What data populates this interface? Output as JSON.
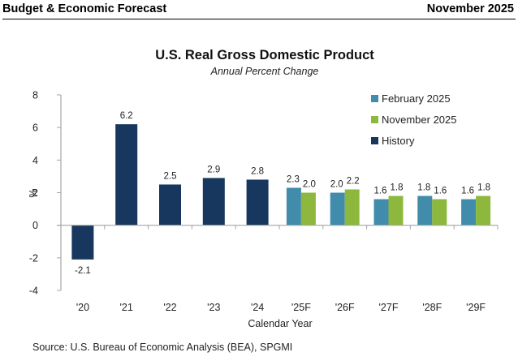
{
  "header": {
    "left_title": "Budget & Economic Forecast",
    "right_title": "November 2025"
  },
  "source": "Source:  U.S. Bureau of Economic Analysis (BEA), SPGMI",
  "chart_data": {
    "type": "bar",
    "title": "U.S. Real Gross Domestic Product",
    "subtitle": "Annual Percent Change",
    "xlabel": "Calendar Year",
    "ylabel": "%",
    "ylim": [
      -4,
      8
    ],
    "yticks": [
      -4,
      -2,
      0,
      2,
      4,
      6,
      8
    ],
    "grid": false,
    "legend_position": "top-right",
    "categories": [
      "'20",
      "'21",
      "'22",
      "'23",
      "'24",
      "'25F",
      "'26F",
      "'27F",
      "'28F",
      "'29F"
    ],
    "series": [
      {
        "name": "February 2025",
        "color": "#418CAB",
        "values": [
          null,
          null,
          null,
          null,
          null,
          2.3,
          2.0,
          1.6,
          1.8,
          1.6
        ]
      },
      {
        "name": "November 2025",
        "color": "#8DB83D",
        "values": [
          null,
          null,
          null,
          null,
          null,
          2.0,
          2.2,
          1.8,
          1.6,
          1.8
        ]
      },
      {
        "name": "History",
        "color": "#17375E",
        "values": [
          -2.1,
          6.2,
          2.5,
          2.9,
          2.8,
          null,
          null,
          null,
          null,
          null
        ]
      }
    ],
    "legend_order": [
      "February 2025",
      "November 2025",
      "History"
    ]
  },
  "colors": {
    "axis": "#A6A6A6"
  }
}
